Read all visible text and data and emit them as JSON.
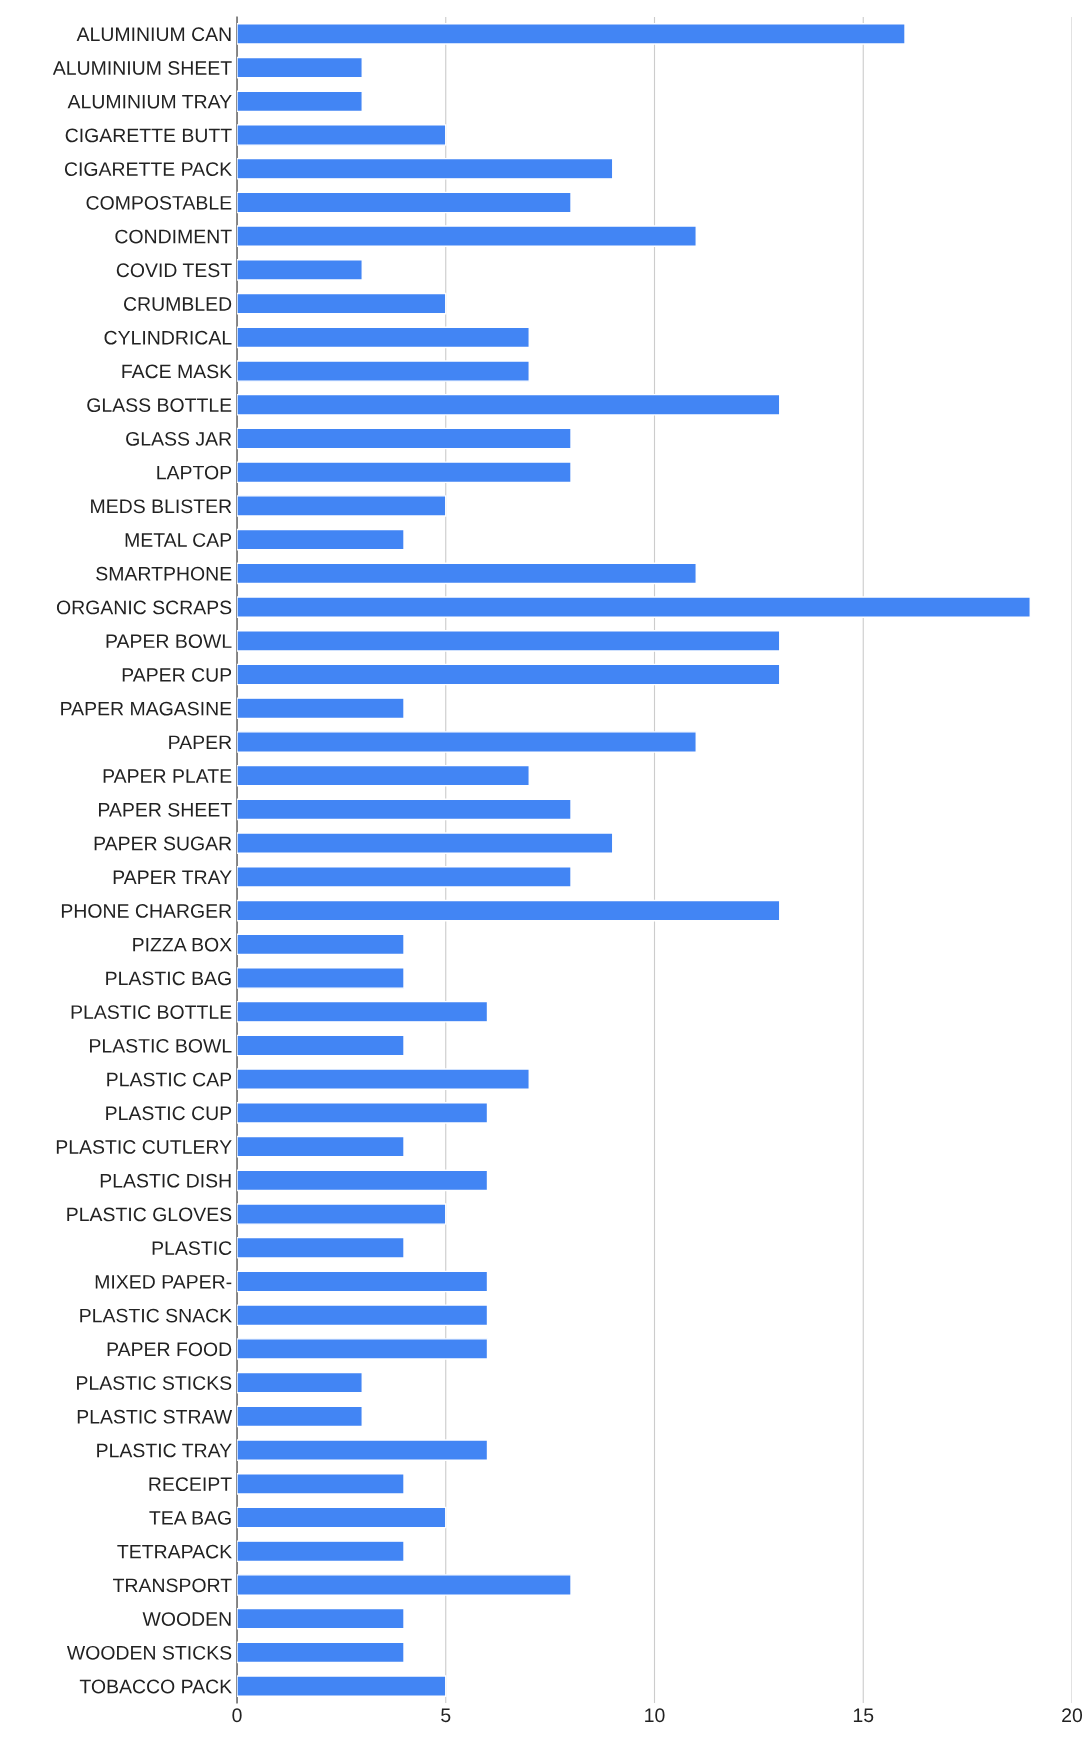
{
  "chart_data": {
    "type": "bar",
    "orientation": "horizontal",
    "color": "#4285f4",
    "categories": [
      "ALUMINIUM CAN",
      "ALUMINIUM SHEET",
      "ALUMINIUM TRAY",
      "CIGARETTE BUTT",
      "CIGARETTE PACK",
      "COMPOSTABLE",
      "CONDIMENT",
      "COVID TEST",
      "CRUMBLED",
      "CYLINDRICAL",
      "FACE MASK",
      "GLASS BOTTLE",
      "GLASS JAR",
      "LAPTOP",
      "MEDS BLISTER",
      "METAL CAP",
      "SMARTPHONE",
      "ORGANIC SCRAPS",
      "PAPER BOWL",
      "PAPER CUP",
      "PAPER MAGASINE",
      "PAPER",
      "PAPER PLATE",
      "PAPER SHEET",
      "PAPER SUGAR",
      "PAPER TRAY",
      "PHONE CHARGER",
      "PIZZA BOX",
      "PLASTIC BAG",
      "PLASTIC BOTTLE",
      "PLASTIC BOWL",
      "PLASTIC CAP",
      "PLASTIC CUP",
      "PLASTIC CUTLERY",
      "PLASTIC DISH",
      "PLASTIC GLOVES",
      "PLASTIC",
      "MIXED PAPER-",
      "PLASTIC SNACK",
      "PAPER FOOD",
      "PLASTIC STICKS",
      "PLASTIC STRAW",
      "PLASTIC TRAY",
      "RECEIPT",
      "TEA BAG",
      "TETRAPACK",
      "TRANSPORT",
      "WOODEN",
      "WOODEN STICKS",
      "TOBACCO PACK"
    ],
    "values": [
      16,
      3,
      3,
      5,
      9,
      8,
      11,
      3,
      5,
      7,
      7,
      13,
      8,
      8,
      5,
      4,
      11,
      19,
      13,
      13,
      4,
      11,
      7,
      8,
      9,
      8,
      13,
      4,
      4,
      6,
      4,
      7,
      6,
      4,
      6,
      5,
      4,
      6,
      6,
      6,
      3,
      3,
      6,
      4,
      5,
      4,
      8,
      4,
      4,
      5
    ],
    "xlim": [
      0,
      20
    ],
    "xticks": [
      0,
      5,
      10,
      15,
      20
    ],
    "grid": "x"
  }
}
